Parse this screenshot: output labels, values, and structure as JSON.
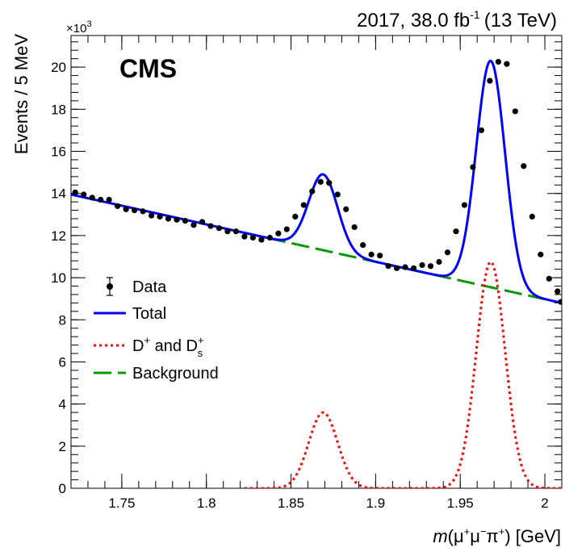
{
  "header": {
    "dataset": "2017, 38.0 fb",
    "lumi_exp": "-1",
    "energy": "(13 TeV)",
    "experiment": "CMS"
  },
  "chart_data": {
    "type": "scatter",
    "xlabel": {
      "prefix": "m",
      "body": "(μ",
      "s1": "+",
      "mid1": "μ",
      "s2": "−",
      "mid2": "π",
      "s3": "+",
      "suffix": ") [GeV]"
    },
    "ylabel": "Events / 5 MeV",
    "y_multiplier": {
      "base": "×10",
      "exp": "3"
    },
    "xlim": [
      1.72,
      2.01
    ],
    "ylim": [
      0,
      21.5
    ],
    "x_ticks": [
      1.75,
      1.8,
      1.85,
      1.9,
      1.95,
      2.0
    ],
    "x_tick_labels": [
      "1.75",
      "1.8",
      "1.85",
      "1.9",
      "1.95",
      "2"
    ],
    "y_ticks": [
      0,
      2,
      4,
      6,
      8,
      10,
      12,
      14,
      16,
      18,
      20
    ],
    "y_tick_labels": [
      "0",
      "2",
      "4",
      "6",
      "8",
      "10",
      "12",
      "14",
      "16",
      "18",
      "20"
    ],
    "legend": {
      "position": "middle-left",
      "items": [
        {
          "key": "data",
          "label": "Data",
          "color": "#000000"
        },
        {
          "key": "total",
          "label": "Total",
          "color": "#0000ff"
        },
        {
          "key": "signal",
          "label": "D",
          "sup1": "+",
          "mid": " and D",
          "sup2": "+",
          "sub2": "s",
          "color": "#ff0000"
        },
        {
          "key": "background",
          "label": "Background",
          "color": "#009900"
        }
      ]
    },
    "background": {
      "x": [
        1.72,
        2.01
      ],
      "y": [
        13.95,
        8.8
      ]
    },
    "peaks": [
      {
        "mean": 1.869,
        "sigma": 0.0085,
        "amplitude": 3.6
      },
      {
        "mean": 1.968,
        "sigma": 0.0085,
        "amplitude": 10.75
      }
    ],
    "data_points": [
      {
        "x": 1.7225,
        "y": 14.05
      },
      {
        "x": 1.7275,
        "y": 13.95
      },
      {
        "x": 1.7325,
        "y": 13.8
      },
      {
        "x": 1.7375,
        "y": 13.7
      },
      {
        "x": 1.7425,
        "y": 13.7
      },
      {
        "x": 1.7475,
        "y": 13.4
      },
      {
        "x": 1.7525,
        "y": 13.25
      },
      {
        "x": 1.7575,
        "y": 13.2
      },
      {
        "x": 1.7625,
        "y": 13.15
      },
      {
        "x": 1.7675,
        "y": 12.95
      },
      {
        "x": 1.7725,
        "y": 12.9
      },
      {
        "x": 1.7775,
        "y": 12.8
      },
      {
        "x": 1.7825,
        "y": 12.75
      },
      {
        "x": 1.7875,
        "y": 12.7
      },
      {
        "x": 1.7925,
        "y": 12.5
      },
      {
        "x": 1.7975,
        "y": 12.65
      },
      {
        "x": 1.8025,
        "y": 12.45
      },
      {
        "x": 1.8075,
        "y": 12.35
      },
      {
        "x": 1.8125,
        "y": 12.2
      },
      {
        "x": 1.8175,
        "y": 12.2
      },
      {
        "x": 1.8225,
        "y": 11.95
      },
      {
        "x": 1.8275,
        "y": 11.9
      },
      {
        "x": 1.8325,
        "y": 11.8
      },
      {
        "x": 1.8375,
        "y": 11.9
      },
      {
        "x": 1.8425,
        "y": 12.1
      },
      {
        "x": 1.8475,
        "y": 12.3
      },
      {
        "x": 1.8525,
        "y": 12.9
      },
      {
        "x": 1.8575,
        "y": 13.45
      },
      {
        "x": 1.8625,
        "y": 14.1
      },
      {
        "x": 1.8675,
        "y": 14.55
      },
      {
        "x": 1.8725,
        "y": 14.5
      },
      {
        "x": 1.8775,
        "y": 13.95
      },
      {
        "x": 1.8825,
        "y": 13.25
      },
      {
        "x": 1.8875,
        "y": 12.4
      },
      {
        "x": 1.8925,
        "y": 11.55
      },
      {
        "x": 1.8975,
        "y": 11.1
      },
      {
        "x": 1.9025,
        "y": 11.05
      },
      {
        "x": 1.9075,
        "y": 10.55
      },
      {
        "x": 1.9125,
        "y": 10.45
      },
      {
        "x": 1.9175,
        "y": 10.5
      },
      {
        "x": 1.9225,
        "y": 10.45
      },
      {
        "x": 1.9275,
        "y": 10.6
      },
      {
        "x": 1.9325,
        "y": 10.55
      },
      {
        "x": 1.9375,
        "y": 10.75
      },
      {
        "x": 1.9425,
        "y": 11.2
      },
      {
        "x": 1.9475,
        "y": 12.2
      },
      {
        "x": 1.9525,
        "y": 13.45
      },
      {
        "x": 1.9575,
        "y": 15.25
      },
      {
        "x": 1.9625,
        "y": 17.0
      },
      {
        "x": 1.9675,
        "y": 19.35
      },
      {
        "x": 1.9725,
        "y": 20.25
      },
      {
        "x": 1.9775,
        "y": 20.15
      },
      {
        "x": 1.9825,
        "y": 17.9
      },
      {
        "x": 1.9875,
        "y": 15.3
      },
      {
        "x": 1.9925,
        "y": 12.9
      },
      {
        "x": 1.9975,
        "y": 11.1
      },
      {
        "x": 2.0025,
        "y": 9.95
      },
      {
        "x": 2.0075,
        "y": 9.35
      },
      {
        "x": 2.0095,
        "y": 8.85
      }
    ]
  }
}
